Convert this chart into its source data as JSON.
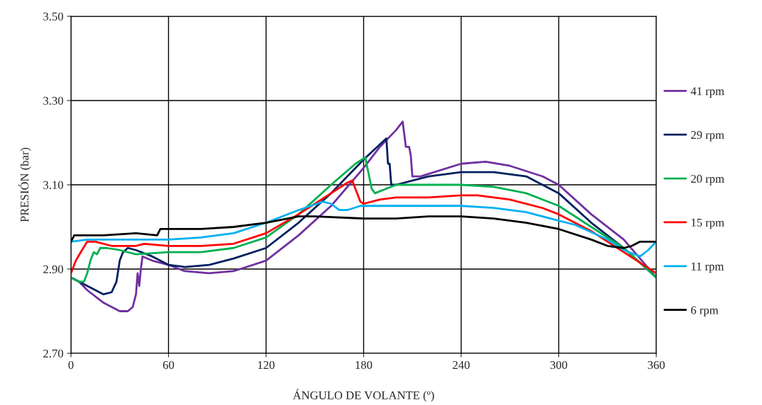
{
  "chart_data": {
    "type": "line",
    "xlabel": "ÁNGULO DE VOLANTE (º)",
    "ylabel": "PRESIÓN (bar)",
    "xlim": [
      0,
      360
    ],
    "xticks": [
      0,
      60,
      120,
      180,
      240,
      300,
      360
    ],
    "ylim": [
      2.7,
      3.5
    ],
    "yticks": [
      {
        "value": 2.7,
        "label": "2.70"
      },
      {
        "value": 2.9,
        "label": "2.90"
      },
      {
        "value": 3.1,
        "label": "3.10"
      },
      {
        "value": 3.3,
        "label": "3.30"
      },
      {
        "value": 3.5,
        "label": "3.50"
      }
    ],
    "grid": true,
    "legend": "right",
    "marker": "none",
    "line_style": "solid",
    "series": [
      {
        "name": "41 rpm",
        "color": "#7030a0",
        "x": [
          0,
          5,
          10,
          20,
          30,
          35,
          38,
          40,
          41,
          42,
          43,
          44,
          50,
          60,
          70,
          85,
          100,
          120,
          140,
          160,
          180,
          190,
          200,
          204,
          206,
          208,
          209,
          210,
          215,
          240,
          255,
          270,
          290,
          300,
          320,
          340,
          360
        ],
        "values": [
          2.88,
          2.87,
          2.85,
          2.82,
          2.8,
          2.8,
          2.81,
          2.84,
          2.89,
          2.86,
          2.9,
          2.93,
          2.92,
          2.91,
          2.895,
          2.89,
          2.895,
          2.92,
          2.98,
          3.05,
          3.14,
          3.19,
          3.23,
          3.25,
          3.19,
          3.19,
          3.17,
          3.12,
          3.12,
          3.15,
          3.155,
          3.145,
          3.12,
          3.1,
          3.03,
          2.97,
          2.88
        ]
      },
      {
        "name": "29 rpm",
        "color": "#002060",
        "x": [
          0,
          10,
          20,
          25,
          28,
          30,
          32,
          35,
          40,
          50,
          60,
          70,
          85,
          100,
          120,
          140,
          160,
          180,
          194,
          195,
          196,
          197,
          200,
          220,
          240,
          260,
          280,
          300,
          320,
          340,
          360
        ],
        "values": [
          2.88,
          2.86,
          2.84,
          2.845,
          2.87,
          2.92,
          2.94,
          2.95,
          2.945,
          2.93,
          2.91,
          2.905,
          2.91,
          2.925,
          2.95,
          3.01,
          3.08,
          3.16,
          3.21,
          3.15,
          3.15,
          3.1,
          3.1,
          3.12,
          3.13,
          3.13,
          3.12,
          3.08,
          3.01,
          2.95,
          2.88
        ]
      },
      {
        "name": "20 rpm",
        "color": "#00b050",
        "x": [
          0,
          5,
          8,
          10,
          12,
          14,
          16,
          18,
          22,
          30,
          40,
          60,
          80,
          100,
          120,
          140,
          160,
          175,
          181,
          185,
          187,
          200,
          220,
          240,
          260,
          280,
          300,
          320,
          340,
          360
        ],
        "values": [
          2.88,
          2.87,
          2.87,
          2.89,
          2.92,
          2.94,
          2.935,
          2.95,
          2.95,
          2.945,
          2.935,
          2.94,
          2.94,
          2.95,
          2.975,
          3.03,
          3.1,
          3.15,
          3.165,
          3.09,
          3.08,
          3.1,
          3.1,
          3.1,
          3.095,
          3.08,
          3.05,
          3.0,
          2.95,
          2.88
        ]
      },
      {
        "name": "15 rpm",
        "color": "#ff0000",
        "x": [
          0,
          3,
          6,
          10,
          15,
          25,
          40,
          45,
          60,
          80,
          100,
          120,
          140,
          160,
          170,
          173,
          175,
          178,
          180,
          190,
          200,
          220,
          240,
          250,
          270,
          290,
          300,
          320,
          340,
          360
        ],
        "values": [
          2.89,
          2.92,
          2.94,
          2.965,
          2.965,
          2.955,
          2.955,
          2.96,
          2.955,
          2.955,
          2.96,
          2.985,
          3.03,
          3.08,
          3.105,
          3.11,
          3.09,
          3.06,
          3.055,
          3.065,
          3.07,
          3.07,
          3.075,
          3.075,
          3.065,
          3.045,
          3.03,
          2.99,
          2.94,
          2.89
        ]
      },
      {
        "name": "11 rpm",
        "color": "#00b0f0",
        "x": [
          0,
          10,
          40,
          60,
          80,
          100,
          120,
          140,
          155,
          160,
          165,
          170,
          178,
          180,
          200,
          240,
          260,
          280,
          300,
          310,
          330,
          340,
          350,
          355,
          360
        ],
        "values": [
          2.965,
          2.97,
          2.97,
          2.97,
          2.975,
          2.985,
          3.01,
          3.04,
          3.06,
          3.055,
          3.04,
          3.04,
          3.05,
          3.05,
          3.05,
          3.05,
          3.045,
          3.035,
          3.015,
          3.005,
          2.97,
          2.945,
          2.93,
          2.945,
          2.965
        ]
      },
      {
        "name": "6 rpm",
        "color": "#000000",
        "x": [
          0,
          2,
          20,
          40,
          53,
          55,
          60,
          80,
          100,
          120,
          140,
          150,
          180,
          200,
          220,
          240,
          260,
          280,
          300,
          320,
          330,
          340,
          345,
          350,
          360
        ],
        "values": [
          2.965,
          2.98,
          2.98,
          2.985,
          2.98,
          2.995,
          2.995,
          2.995,
          3.0,
          3.01,
          3.025,
          3.025,
          3.02,
          3.02,
          3.025,
          3.025,
          3.02,
          3.01,
          2.995,
          2.97,
          2.955,
          2.95,
          2.955,
          2.965,
          2.965
        ]
      }
    ]
  }
}
